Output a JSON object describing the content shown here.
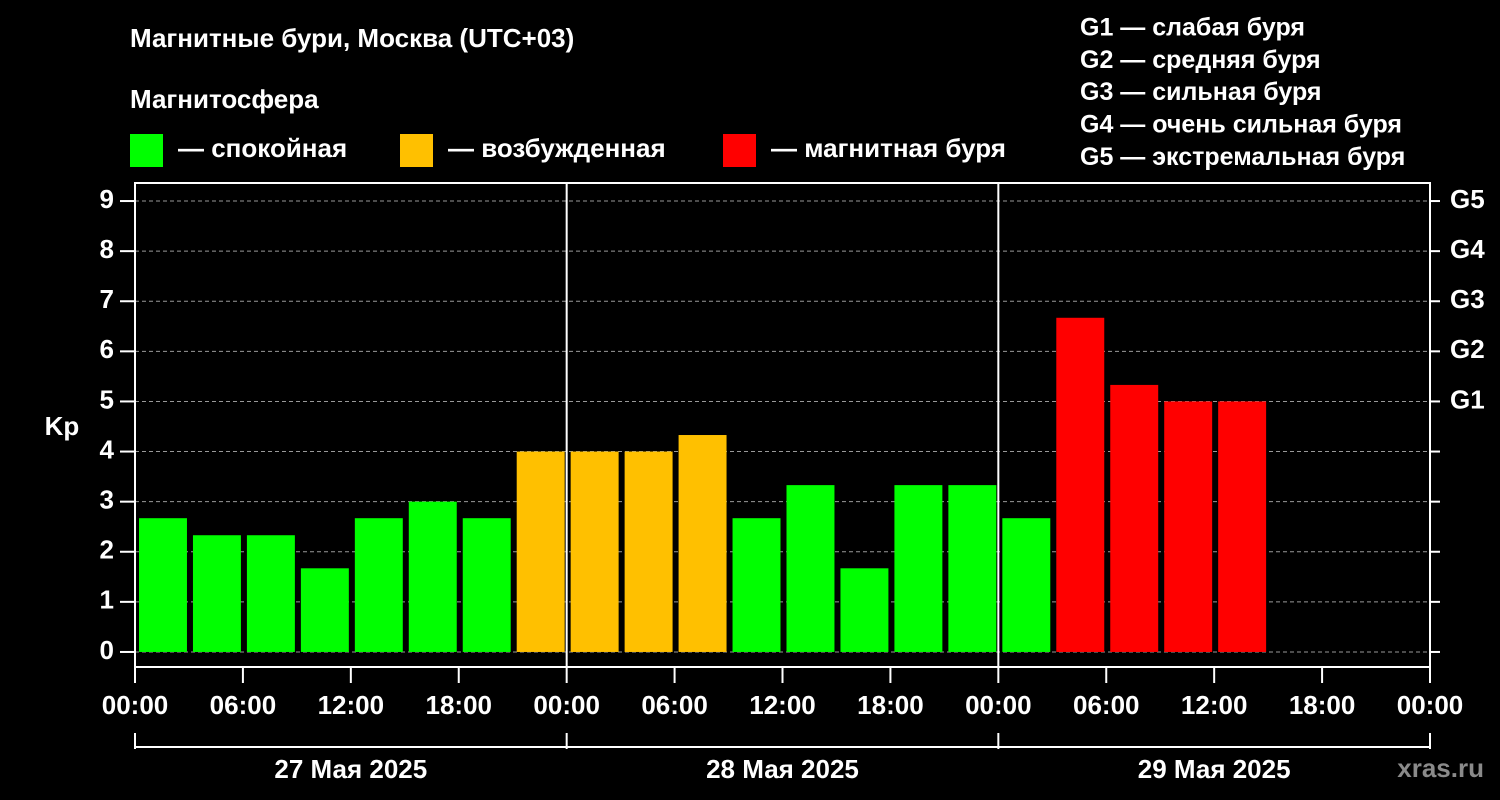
{
  "chart_data": {
    "type": "bar",
    "title": "Магнитные бури, Москва (UTC+03)",
    "legend_title": "Магнитосфера",
    "ylabel": "Kp",
    "watermark": "xras.ru",
    "g_scale": [
      "G1 — слабая буря",
      "G2 — средняя буря",
      "G3 — сильная буря",
      "G4 — очень сильная буря",
      "G5 — экстремальная буря"
    ],
    "x": [
      0,
      3,
      6,
      9,
      12,
      15,
      18,
      21,
      24,
      27,
      30,
      33,
      36,
      39,
      42,
      45,
      48,
      51,
      54,
      57,
      60
    ],
    "series": [
      {
        "name": "— спокойная",
        "color": "#00ff00",
        "values": [
          2.67,
          2.33,
          2.33,
          1.67,
          2.67,
          3,
          2.67,
          null,
          null,
          null,
          null,
          2.67,
          3.33,
          1.67,
          3.33,
          3.33,
          2.67,
          null,
          null,
          null,
          null
        ]
      },
      {
        "name": "— возбужденная",
        "color": "#ffc000",
        "values": [
          null,
          null,
          null,
          null,
          null,
          null,
          null,
          4,
          4,
          4,
          4.33,
          null,
          null,
          null,
          null,
          null,
          null,
          null,
          null,
          null,
          null
        ]
      },
      {
        "name": "— магнитная буря",
        "color": "#ff0000",
        "values": [
          null,
          null,
          null,
          null,
          null,
          null,
          null,
          null,
          null,
          null,
          null,
          null,
          null,
          null,
          null,
          null,
          null,
          6.67,
          5.33,
          5,
          5
        ]
      }
    ],
    "xlim": [
      0,
      72
    ],
    "xticks": [
      {
        "value": 0,
        "label": "00:00"
      },
      {
        "value": 6,
        "label": "06:00"
      },
      {
        "value": 12,
        "label": "12:00"
      },
      {
        "value": 18,
        "label": "18:00"
      },
      {
        "value": 24,
        "label": "00:00"
      },
      {
        "value": 30,
        "label": "06:00"
      },
      {
        "value": 36,
        "label": "12:00"
      },
      {
        "value": 42,
        "label": "18:00"
      },
      {
        "value": 48,
        "label": "00:00"
      },
      {
        "value": 54,
        "label": "06:00"
      },
      {
        "value": 60,
        "label": "12:00"
      },
      {
        "value": 66,
        "label": "18:00"
      },
      {
        "value": 72,
        "label": "00:00"
      }
    ],
    "days": [
      {
        "label": "27 Мая 2025",
        "start": 0,
        "end": 24
      },
      {
        "label": "28 Мая 2025",
        "start": 24,
        "end": 48
      },
      {
        "label": "29 Мая 2025",
        "start": 48,
        "end": 72
      }
    ],
    "ylim": [
      -0.3,
      9.36
    ],
    "yticks": [
      0,
      1,
      2,
      3,
      4,
      5,
      6,
      7,
      8,
      9
    ],
    "y2lim": [
      -0.3,
      9.36
    ],
    "y2ticks": [
      {
        "value": 5,
        "label": "G1"
      },
      {
        "value": 6,
        "label": "G2"
      },
      {
        "value": 7,
        "label": "G3"
      },
      {
        "value": 8,
        "label": "G4"
      },
      {
        "value": 9,
        "label": "G5"
      }
    ],
    "grid": true
  }
}
